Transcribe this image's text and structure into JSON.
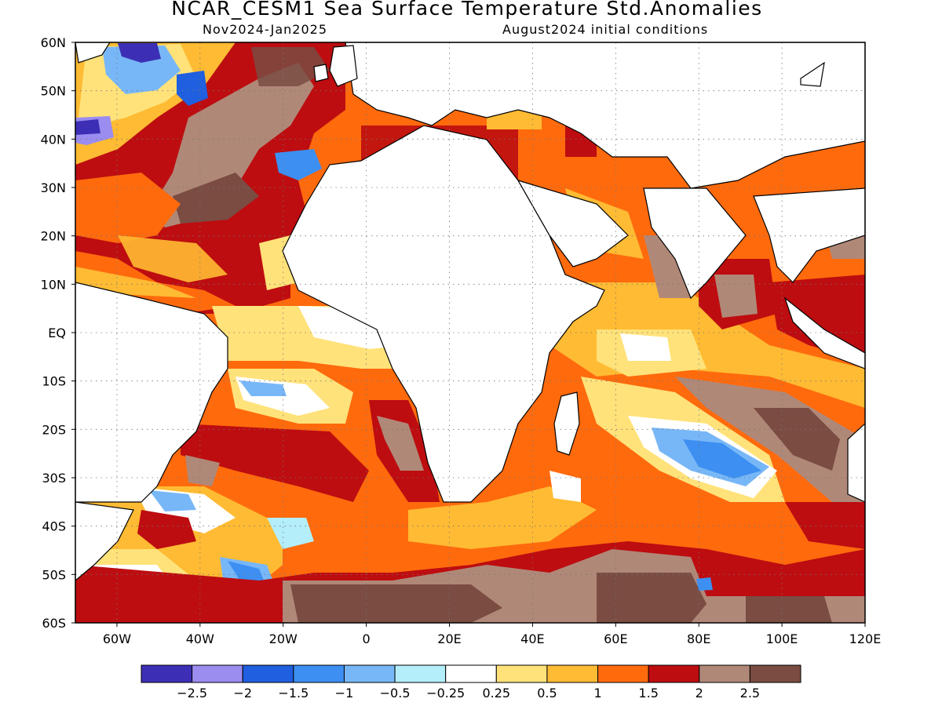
{
  "title": "NCAR_CESM1 Sea Surface Temperature Std.Anomalies",
  "subtitle_left": "Nov2024-Jan2025",
  "subtitle_right": "August2024 initial conditions",
  "lat_labels": [
    "60N",
    "50N",
    "40N",
    "30N",
    "20N",
    "10N",
    "EQ",
    "10S",
    "20S",
    "30S",
    "40S",
    "50S",
    "60S"
  ],
  "lon_labels": [
    "60W",
    "40W",
    "20W",
    "0",
    "20E",
    "40E",
    "60E",
    "80E",
    "100E",
    "120E"
  ],
  "colorbar": {
    "colors": [
      "#3c2fb5",
      "#9b8cf0",
      "#1f5fe0",
      "#3d8ff2",
      "#78b7f7",
      "#b3eefa",
      "#ffffff",
      "#ffe27a",
      "#ffbb33",
      "#ff6a0d",
      "#bd0d10",
      "#b08878",
      "#7a4c42"
    ],
    "labels": [
      "-2.5",
      "-2",
      "-1.5",
      "-1",
      "-0.5",
      "-0.25",
      "0.25",
      "0.5",
      "1",
      "1.5",
      "2",
      "2.5"
    ]
  },
  "ranges": {
    "lon": [
      -70,
      120
    ],
    "lat": [
      -60,
      60
    ]
  }
}
